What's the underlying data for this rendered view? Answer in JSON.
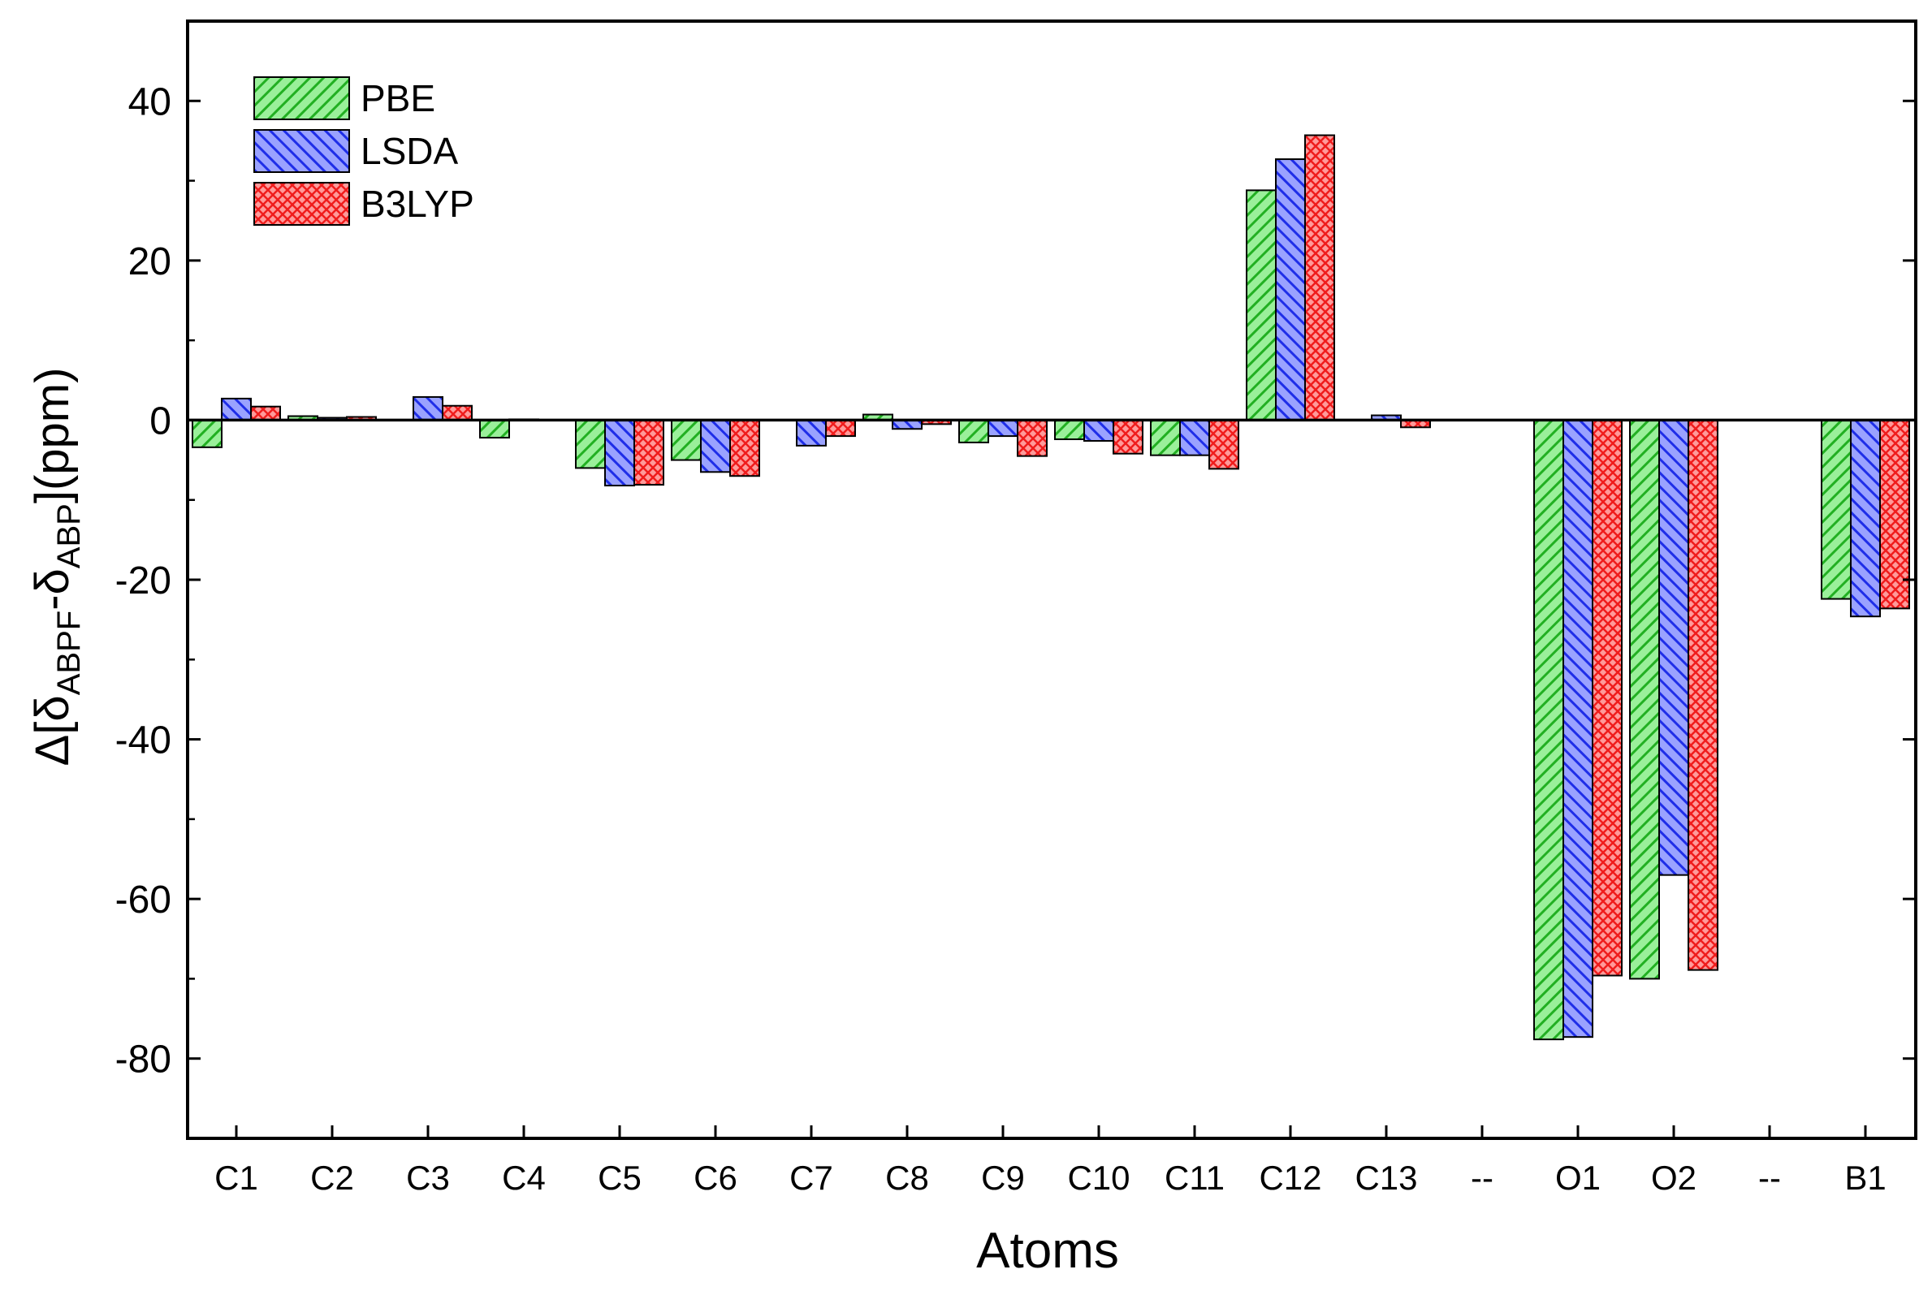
{
  "chart_data": {
    "type": "bar",
    "title": "",
    "xlabel": "Atoms",
    "ylabel_parts": {
      "prefix": "Δ[δ",
      "sub1": "ABPF",
      "mid": "-δ",
      "sub2": "ABP",
      "suffix": "](ppm)"
    },
    "categories": [
      "C1",
      "C2",
      "C3",
      "C4",
      "C5",
      "C6",
      "C7",
      "C8",
      "C9",
      "C10",
      "C11",
      "C12",
      "C13",
      "--",
      "O1",
      "O2",
      "--",
      "B1"
    ],
    "ylim": [
      -90,
      50
    ],
    "yticks": [
      40,
      20,
      0,
      -20,
      -40,
      -60,
      -80
    ],
    "ytick_labels": [
      "40",
      "20",
      "0",
      "-20",
      "-40",
      "-60",
      "-80"
    ],
    "legend_position": "top-left",
    "grid": false,
    "series": [
      {
        "name": "PBE",
        "color": "#22b022",
        "light": "#9af09a",
        "pattern": "diag-right",
        "values": [
          -3.4,
          0.5,
          0.0,
          -2.2,
          -6.0,
          -5.0,
          0.0,
          0.7,
          -2.8,
          -2.4,
          -4.4,
          28.8,
          0.0,
          0,
          -77.6,
          -70.0,
          0,
          -22.4
        ]
      },
      {
        "name": "LSDA",
        "color": "#1f2ee8",
        "light": "#9aa2ff",
        "pattern": "diag-left",
        "values": [
          2.7,
          0.3,
          2.9,
          0.1,
          -8.2,
          -6.5,
          -3.2,
          -1.1,
          -2.0,
          -2.6,
          -4.4,
          32.7,
          0.6,
          0,
          -77.3,
          -57.0,
          0,
          -24.6
        ]
      },
      {
        "name": "B3LYP",
        "color": "#f01c1c",
        "light": "#ff9a9a",
        "pattern": "crosshatch",
        "values": [
          1.7,
          0.4,
          1.8,
          0.0,
          -8.1,
          -7.0,
          -2.0,
          -0.5,
          -4.5,
          -4.2,
          -6.1,
          35.7,
          -0.9,
          0,
          -69.6,
          -68.9,
          0,
          -23.6
        ]
      }
    ]
  }
}
